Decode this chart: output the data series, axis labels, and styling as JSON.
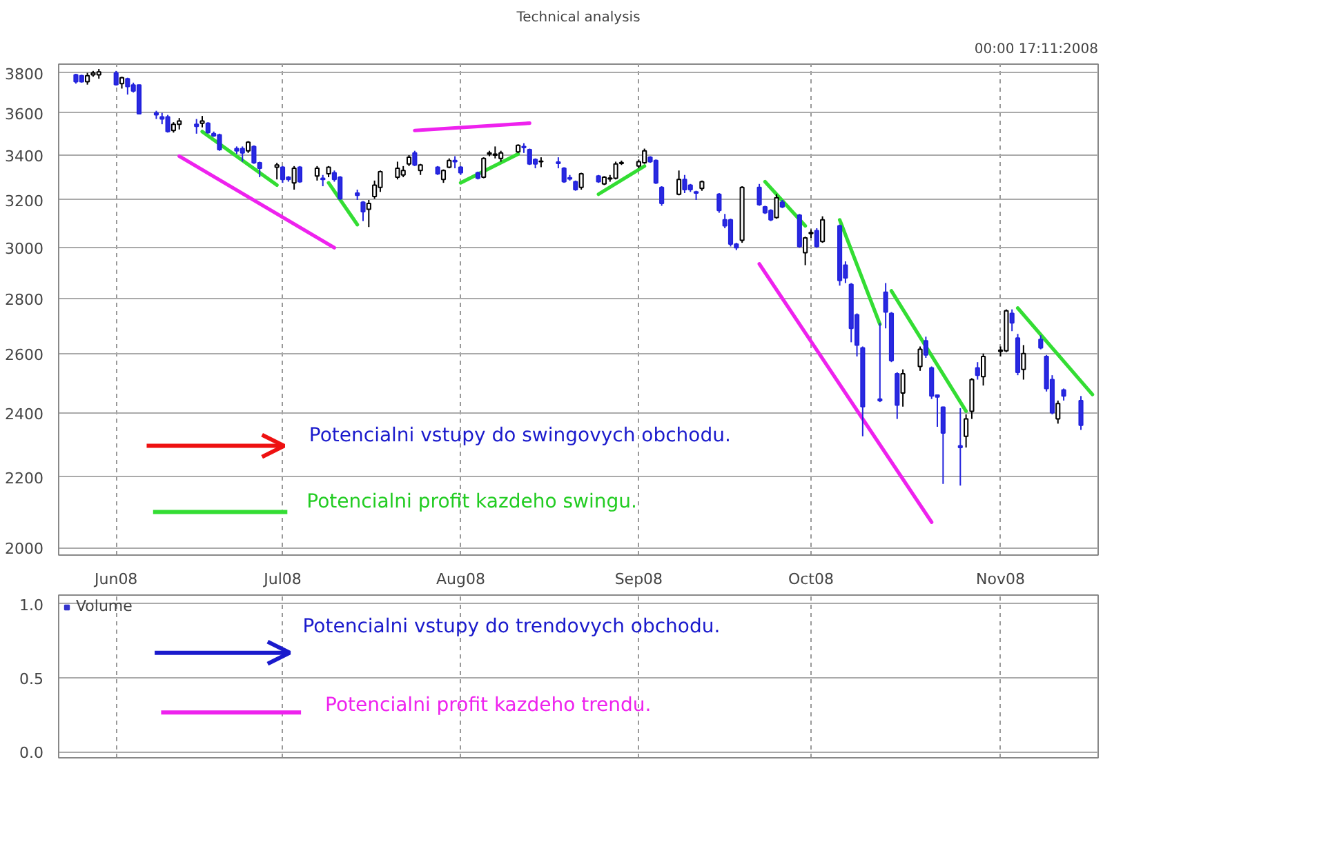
{
  "chart_data": [
    {
      "type": "candlestick",
      "title": "Technical analysis",
      "log": true,
      "grid": true,
      "annotations": [
        "00:00 17:11:2008",
        "Potencialni vstupy do swingovych obchodu.",
        "Potencialni profit kazdeho swingu."
      ],
      "x": [
        "2008-05-26",
        "2008-05-27",
        "2008-05-28",
        "2008-05-29",
        "2008-05-30",
        "2008-06-02",
        "2008-06-03",
        "2008-06-04",
        "2008-06-05",
        "2008-06-06",
        "2008-06-09",
        "2008-06-10",
        "2008-06-11",
        "2008-06-12",
        "2008-06-13",
        "2008-06-16",
        "2008-06-17",
        "2008-06-18",
        "2008-06-19",
        "2008-06-20",
        "2008-06-23",
        "2008-06-24",
        "2008-06-25",
        "2008-06-26",
        "2008-06-27",
        "2008-06-30",
        "2008-07-01",
        "2008-07-02",
        "2008-07-03",
        "2008-07-04",
        "2008-07-07",
        "2008-07-08",
        "2008-07-09",
        "2008-07-10",
        "2008-07-11",
        "2008-07-14",
        "2008-07-15",
        "2008-07-16",
        "2008-07-17",
        "2008-07-18",
        "2008-07-21",
        "2008-07-22",
        "2008-07-23",
        "2008-07-24",
        "2008-07-25",
        "2008-07-28",
        "2008-07-29",
        "2008-07-30",
        "2008-07-31",
        "2008-08-01",
        "2008-08-04",
        "2008-08-05",
        "2008-08-06",
        "2008-08-07",
        "2008-08-08",
        "2008-08-11",
        "2008-08-12",
        "2008-08-13",
        "2008-08-14",
        "2008-08-15",
        "2008-08-18",
        "2008-08-19",
        "2008-08-20",
        "2008-08-21",
        "2008-08-22",
        "2008-08-25",
        "2008-08-26",
        "2008-08-27",
        "2008-08-28",
        "2008-08-29",
        "2008-09-01",
        "2008-09-02",
        "2008-09-03",
        "2008-09-04",
        "2008-09-05",
        "2008-09-08",
        "2008-09-09",
        "2008-09-10",
        "2008-09-11",
        "2008-09-12",
        "2008-09-15",
        "2008-09-16",
        "2008-09-17",
        "2008-09-18",
        "2008-09-19",
        "2008-09-22",
        "2008-09-23",
        "2008-09-24",
        "2008-09-25",
        "2008-09-26",
        "2008-09-29",
        "2008-09-30",
        "2008-10-01",
        "2008-10-02",
        "2008-10-03",
        "2008-10-06",
        "2008-10-07",
        "2008-10-08",
        "2008-10-09",
        "2008-10-10",
        "2008-10-13",
        "2008-10-14",
        "2008-10-15",
        "2008-10-16",
        "2008-10-17",
        "2008-10-20",
        "2008-10-21",
        "2008-10-22",
        "2008-10-23",
        "2008-10-24",
        "2008-10-27",
        "2008-10-28",
        "2008-10-29",
        "2008-10-30",
        "2008-10-31",
        "2008-11-03",
        "2008-11-04",
        "2008-11-05",
        "2008-11-06",
        "2008-11-07",
        "2008-11-10",
        "2008-11-11",
        "2008-11-12",
        "2008-11-13",
        "2008-11-14",
        "2008-11-17"
      ],
      "ohlc": [
        [
          3790,
          3795,
          3745,
          3755
        ],
        [
          3785,
          3790,
          3750,
          3755
        ],
        [
          3755,
          3800,
          3740,
          3785
        ],
        [
          3790,
          3810,
          3780,
          3800
        ],
        [
          3790,
          3820,
          3770,
          3805
        ],
        [
          3800,
          3810,
          3735,
          3740
        ],
        [
          3745,
          3780,
          3720,
          3775
        ],
        [
          3770,
          3775,
          3690,
          3730
        ],
        [
          3738,
          3750,
          3700,
          3708
        ],
        [
          3738,
          3740,
          3595,
          3595
        ],
        [
          3600,
          3610,
          3570,
          3590
        ],
        [
          3580,
          3600,
          3545,
          3570
        ],
        [
          3580,
          3590,
          3505,
          3510
        ],
        [
          3515,
          3555,
          3505,
          3545
        ],
        [
          3545,
          3575,
          3520,
          3560
        ],
        [
          3545,
          3570,
          3500,
          3535
        ],
        [
          3550,
          3585,
          3530,
          3560
        ],
        [
          3550,
          3555,
          3500,
          3505
        ],
        [
          3500,
          3510,
          3485,
          3490
        ],
        [
          3495,
          3500,
          3420,
          3425
        ],
        [
          3430,
          3440,
          3405,
          3420
        ],
        [
          3430,
          3440,
          3370,
          3410
        ],
        [
          3420,
          3465,
          3410,
          3460
        ],
        [
          3440,
          3445,
          3360,
          3365
        ],
        [
          3365,
          3370,
          3300,
          3340
        ],
        [
          3345,
          3365,
          3290,
          3355
        ],
        [
          3345,
          3350,
          3275,
          3290
        ],
        [
          3300,
          3305,
          3280,
          3290
        ],
        [
          3275,
          3350,
          3245,
          3340
        ],
        [
          3345,
          3350,
          3275,
          3280
        ],
        [
          3305,
          3350,
          3285,
          3340
        ],
        [
          3295,
          3310,
          3260,
          3290
        ],
        [
          3315,
          3350,
          3300,
          3345
        ],
        [
          3320,
          3330,
          3280,
          3290
        ],
        [
          3300,
          3305,
          3200,
          3205
        ],
        [
          3230,
          3245,
          3200,
          3220
        ],
        [
          3190,
          3195,
          3110,
          3150
        ],
        [
          3160,
          3200,
          3085,
          3185
        ],
        [
          3215,
          3285,
          3205,
          3265
        ],
        [
          3255,
          3330,
          3235,
          3325
        ],
        [
          3300,
          3370,
          3290,
          3340
        ],
        [
          3310,
          3350,
          3300,
          3330
        ],
        [
          3360,
          3400,
          3350,
          3390
        ],
        [
          3410,
          3420,
          3350,
          3355
        ],
        [
          3330,
          3360,
          3310,
          3355
        ],
        [
          3345,
          3350,
          3310,
          3315
        ],
        [
          3290,
          3335,
          3275,
          3330
        ],
        [
          3345,
          3385,
          3340,
          3375
        ],
        [
          3375,
          3395,
          3340,
          3370
        ],
        [
          3345,
          3350,
          3310,
          3320
        ],
        [
          3320,
          3325,
          3290,
          3295
        ],
        [
          3300,
          3390,
          3295,
          3385
        ],
        [
          3405,
          3420,
          3395,
          3410
        ],
        [
          3400,
          3440,
          3385,
          3405
        ],
        [
          3385,
          3420,
          3370,
          3410
        ],
        [
          3415,
          3450,
          3410,
          3445
        ],
        [
          3440,
          3455,
          3410,
          3435
        ],
        [
          3425,
          3430,
          3355,
          3360
        ],
        [
          3380,
          3385,
          3340,
          3360
        ],
        [
          3370,
          3390,
          3345,
          3372
        ],
        [
          3368,
          3390,
          3340,
          3362
        ],
        [
          3340,
          3345,
          3275,
          3280
        ],
        [
          3298,
          3310,
          3285,
          3292
        ],
        [
          3280,
          3285,
          3240,
          3245
        ],
        [
          3255,
          3320,
          3245,
          3315
        ],
        [
          3305,
          3310,
          3275,
          3280
        ],
        [
          3270,
          3305,
          3265,
          3300
        ],
        [
          3292,
          3310,
          3280,
          3296
        ],
        [
          3295,
          3370,
          3290,
          3360
        ],
        [
          3362,
          3375,
          3355,
          3366
        ],
        [
          3350,
          3380,
          3340,
          3370
        ],
        [
          3365,
          3430,
          3360,
          3420
        ],
        [
          3390,
          3395,
          3365,
          3370
        ],
        [
          3375,
          3380,
          3270,
          3275
        ],
        [
          3255,
          3260,
          3175,
          3185
        ],
        [
          3225,
          3330,
          3220,
          3290
        ],
        [
          3290,
          3310,
          3230,
          3245
        ],
        [
          3265,
          3270,
          3235,
          3245
        ],
        [
          3235,
          3240,
          3200,
          3230
        ],
        [
          3250,
          3285,
          3240,
          3280
        ],
        [
          3225,
          3230,
          3145,
          3155
        ],
        [
          3115,
          3140,
          3080,
          3090
        ],
        [
          3115,
          3120,
          3005,
          3015
        ],
        [
          3015,
          3020,
          2990,
          3000
        ],
        [
          3030,
          3260,
          3020,
          3255
        ],
        [
          3255,
          3270,
          3175,
          3180
        ],
        [
          3170,
          3175,
          3140,
          3145
        ],
        [
          3155,
          3160,
          3110,
          3115
        ],
        [
          3125,
          3225,
          3120,
          3210
        ],
        [
          3190,
          3200,
          3165,
          3170
        ],
        [
          3135,
          3140,
          3000,
          3005
        ],
        [
          2980,
          3045,
          2930,
          3040
        ],
        [
          3058,
          3075,
          3040,
          3062
        ],
        [
          3070,
          3080,
          3000,
          3005
        ],
        [
          3025,
          3130,
          3020,
          3115
        ],
        [
          3090,
          3095,
          2850,
          2870
        ],
        [
          2930,
          2945,
          2860,
          2880
        ],
        [
          2855,
          2860,
          2640,
          2690
        ],
        [
          2740,
          2745,
          2590,
          2630
        ],
        [
          2620,
          2625,
          2325,
          2420
        ],
        [
          2445,
          2710,
          2435,
          2440
        ],
        [
          2825,
          2860,
          2690,
          2750
        ],
        [
          2745,
          2750,
          2570,
          2575
        ],
        [
          2530,
          2535,
          2380,
          2425
        ],
        [
          2465,
          2545,
          2420,
          2530
        ],
        [
          2555,
          2625,
          2540,
          2615
        ],
        [
          2645,
          2660,
          2585,
          2595
        ],
        [
          2550,
          2555,
          2445,
          2455
        ],
        [
          2458,
          2460,
          2355,
          2452
        ],
        [
          2418,
          2420,
          2180,
          2335
        ],
        [
          2295,
          2415,
          2175,
          2290
        ],
        [
          2325,
          2395,
          2290,
          2380
        ],
        [
          2405,
          2515,
          2380,
          2510
        ],
        [
          2550,
          2570,
          2510,
          2525
        ],
        [
          2520,
          2600,
          2490,
          2590
        ],
        [
          2608,
          2625,
          2590,
          2612
        ],
        [
          2610,
          2760,
          2605,
          2755
        ],
        [
          2745,
          2760,
          2680,
          2710
        ],
        [
          2655,
          2670,
          2525,
          2535
        ],
        [
          2545,
          2630,
          2510,
          2600
        ],
        [
          2650,
          2665,
          2615,
          2620
        ],
        [
          2590,
          2595,
          2470,
          2480
        ],
        [
          2510,
          2525,
          2395,
          2400
        ],
        [
          2380,
          2440,
          2365,
          2430
        ],
        [
          2475,
          2480,
          2440,
          2455
        ],
        [
          2440,
          2455,
          2345,
          2360
        ]
      ],
      "series": [
        {
          "type": "line",
          "color": "#33dd33",
          "x": [
            "2008-06-17",
            "2008-06-30"
          ],
          "values": [
            3510,
            3265
          ]
        },
        {
          "type": "line",
          "color": "#33dd33",
          "x": [
            "2008-07-09",
            "2008-07-14"
          ],
          "values": [
            3275,
            3095
          ]
        },
        {
          "type": "line",
          "color": "#33dd33",
          "x": [
            "2008-08-01",
            "2008-08-11"
          ],
          "values": [
            3275,
            3405
          ]
        },
        {
          "type": "line",
          "color": "#33dd33",
          "x": [
            "2008-08-25",
            "2008-09-02"
          ],
          "values": [
            3225,
            3350
          ]
        },
        {
          "type": "line",
          "color": "#33dd33",
          "x": [
            "2008-09-23",
            "2008-09-30"
          ],
          "values": [
            3280,
            3090
          ]
        },
        {
          "type": "line",
          "color": "#33dd33",
          "x": [
            "2008-10-06",
            "2008-10-13"
          ],
          "values": [
            3115,
            2705
          ]
        },
        {
          "type": "line",
          "color": "#33dd33",
          "x": [
            "2008-10-15",
            "2008-10-28"
          ],
          "values": [
            2830,
            2405
          ]
        },
        {
          "type": "line",
          "color": "#33dd33",
          "x": [
            "2008-11-06",
            "2008-11-19"
          ],
          "values": [
            2765,
            2460
          ]
        },
        {
          "type": "line",
          "color": "#ee22ee",
          "x": [
            "2008-06-13",
            "2008-07-10"
          ],
          "values": [
            3395,
            3000
          ]
        },
        {
          "type": "line",
          "color": "#ee22ee",
          "x": [
            "2008-07-24",
            "2008-08-13"
          ],
          "values": [
            3515,
            3550
          ]
        },
        {
          "type": "line",
          "color": "#ee22ee",
          "x": [
            "2008-09-22",
            "2008-10-22"
          ],
          "values": [
            2935,
            2070
          ]
        }
      ],
      "xlim": [
        "2008-05-23",
        "2008-11-20"
      ],
      "xticks": [
        {
          "value": "2008-06-02",
          "label": "Jun08"
        },
        {
          "value": "2008-07-01",
          "label": "Jul08"
        },
        {
          "value": "2008-08-01",
          "label": "Aug08"
        },
        {
          "value": "2008-09-01",
          "label": "Sep08"
        },
        {
          "value": "2008-10-01",
          "label": "Oct08"
        },
        {
          "value": "2008-11-03",
          "label": "Nov08"
        }
      ],
      "ylim": [
        1980,
        3845
      ],
      "yticks": [
        2000,
        2200,
        2400,
        2600,
        2800,
        3000,
        3200,
        3400,
        3600,
        3800
      ]
    },
    {
      "type": "bar",
      "grid": true,
      "legend": "top left",
      "tick_labels": "y",
      "annotations": [
        "Potencialni vstupy do trendovych obchodu.",
        "Potencialni profit kazdeho trendu."
      ],
      "series": [
        {
          "name": "Volume",
          "color": "#3333cc"
        }
      ],
      "ylim": [
        -0.04,
        1.06
      ],
      "yticks": [
        {
          "value": 0,
          "label": "0.0"
        },
        {
          "value": 0.5,
          "label": "0.5"
        },
        {
          "value": 1,
          "label": "1.0"
        }
      ]
    }
  ]
}
